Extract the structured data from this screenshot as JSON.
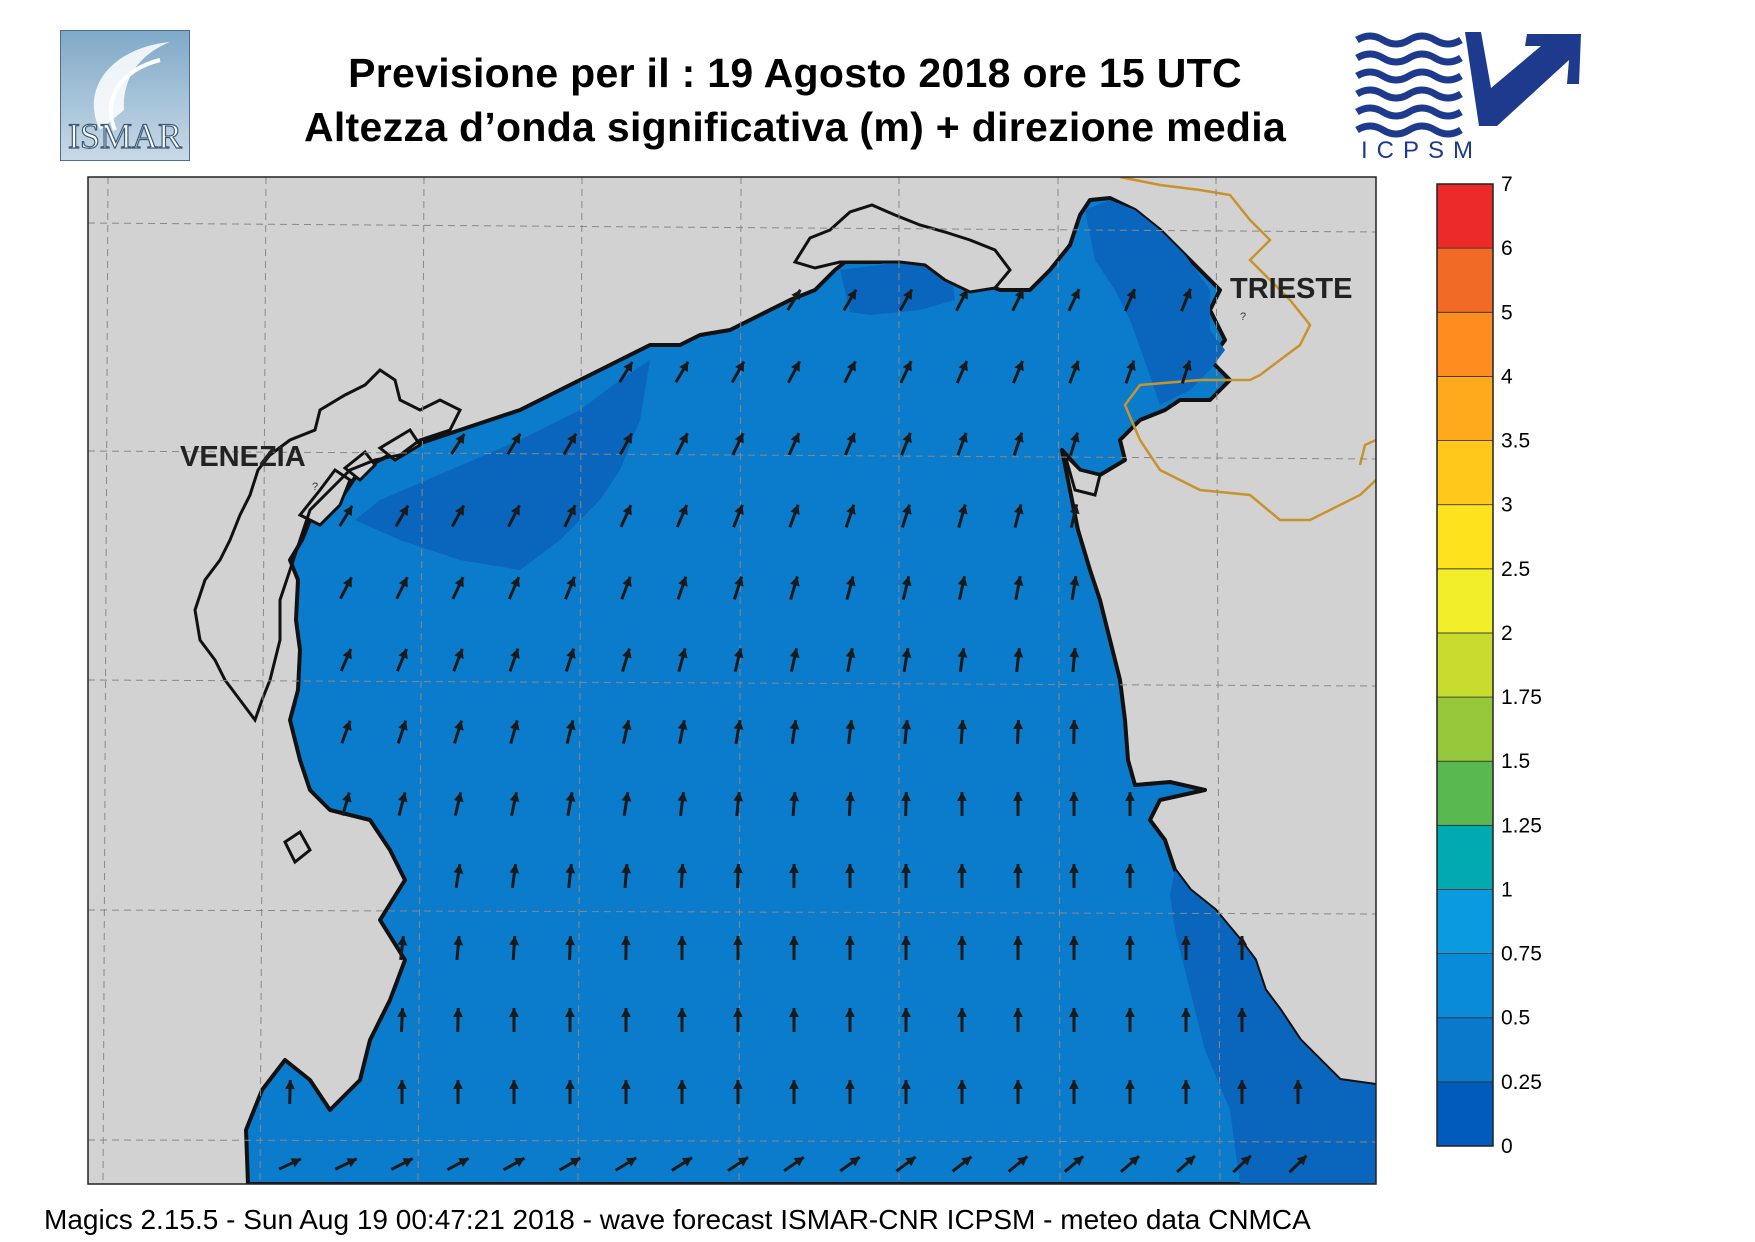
{
  "header": {
    "line1": "Previsione per il  :  19   Agosto  2018   ore 15 UTC",
    "line2": "Altezza d’onda significativa (m) + direzione media"
  },
  "logos": {
    "left": "ISMAR",
    "right": "ICPSM"
  },
  "map": {
    "cities": [
      "VENEZIA",
      "TRIESTE"
    ],
    "sea_color": "#0b7bcb",
    "dark_sea_color": "#0a65bd",
    "land_color": "#d2d2d2",
    "border_color": "#c8932b"
  },
  "colorbar": {
    "labels": [
      "0",
      "0.25",
      "0.5",
      "0.75",
      "1",
      "1.25",
      "1.5",
      "1.75",
      "2",
      "2.5",
      "3",
      "3.5",
      "4",
      "5",
      "6",
      "7"
    ],
    "colors": [
      "#005bbd",
      "#0a78cb",
      "#0a8bd9",
      "#0a9ae0",
      "#00aab0",
      "#5ab850",
      "#94c83a",
      "#c8dc30",
      "#f2ee2a",
      "#fee21e",
      "#ffc81b",
      "#ffa91b",
      "#ff8c1e",
      "#f26b26",
      "#ec2a2a",
      "#ec1c72"
    ]
  },
  "footer": {
    "text": "Magics 2.15.5 - Sun Aug 19 00:47:21 2018 - wave forecast  ISMAR-CNR  ICPSM - meteo data   CNMCA"
  }
}
